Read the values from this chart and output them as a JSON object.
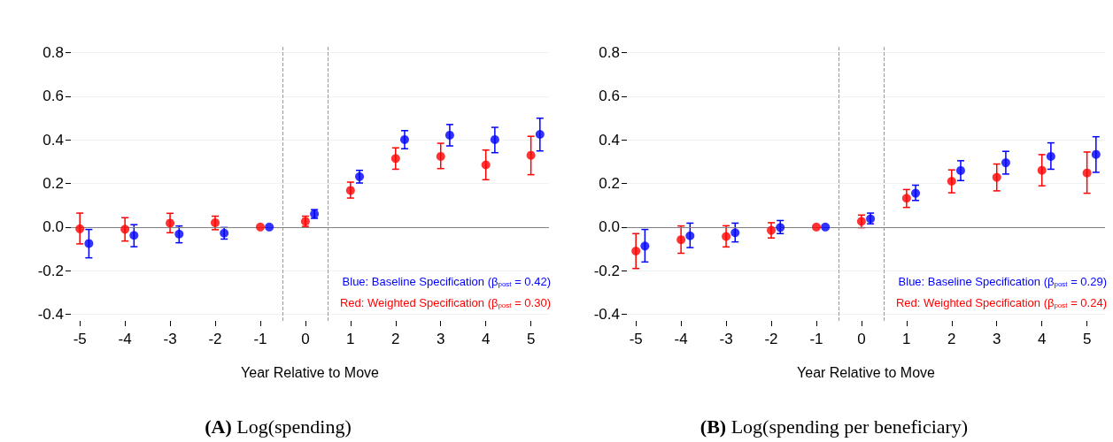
{
  "chart_data": [
    {
      "type": "scatter",
      "title": "(A) Log(spending)",
      "xlabel": "Year Relative to Move",
      "x": [
        -5,
        -4,
        -3,
        -2,
        -1,
        0,
        1,
        2,
        3,
        4,
        5
      ],
      "series": [
        {
          "color": "#0000ff",
          "x": [
            -4.8,
            -3.8,
            -2.8,
            -1.8,
            -0.8,
            0.2,
            1.2,
            2.2,
            3.2,
            4.2,
            5.2
          ],
          "values": [
            -0.075,
            -0.038,
            -0.032,
            -0.028,
            0,
            0.06,
            0.231,
            0.401,
            0.421,
            0.401,
            0.425
          ],
          "errors": [
            [
              -0.141,
              -0.011
            ],
            [
              -0.09,
              0.011
            ],
            [
              -0.072,
              0.005
            ],
            [
              -0.055,
              -0.002
            ],
            null,
            [
              0.04,
              0.08
            ],
            [
              0.202,
              0.26
            ],
            [
              0.359,
              0.442
            ],
            [
              0.372,
              0.47
            ],
            [
              0.341,
              0.457
            ],
            [
              0.349,
              0.499
            ]
          ]
        },
        {
          "color": "#ff0000",
          "values": [
            -0.008,
            -0.01,
            0.018,
            0.02,
            0,
            0.026,
            0.168,
            0.314,
            0.324,
            0.285,
            0.329
          ],
          "errors": [
            [
              -0.077,
              0.064
            ],
            [
              -0.064,
              0.043
            ],
            [
              -0.026,
              0.063
            ],
            [
              -0.012,
              0.05
            ],
            null,
            [
              0.003,
              0.05
            ],
            [
              0.133,
              0.206
            ],
            [
              0.265,
              0.363
            ],
            [
              0.268,
              0.384
            ],
            [
              0.217,
              0.353
            ],
            [
              0.24,
              0.416
            ]
          ]
        }
      ],
      "annotations": [
        "Blue: Baseline Specification (β$_{post}$ = 0.42)",
        "Red: Weighted Specification (β$_{post}$ = 0.30)"
      ],
      "xlim": [
        -5.2,
        5.4
      ],
      "xticks": [
        -5,
        -4,
        -3,
        -2,
        -1,
        0,
        1,
        2,
        3,
        4,
        5
      ],
      "ylim": [
        -0.43,
        0.83
      ],
      "yticks": [
        {
          "value": -0.4,
          "label": "-0.4"
        },
        {
          "value": -0.2,
          "label": "-0.2"
        },
        {
          "value": 0,
          "label": "0.0"
        },
        {
          "value": 0.2,
          "label": "0.2"
        },
        {
          "value": 0.4,
          "label": "0.4"
        },
        {
          "value": 0.6,
          "label": "0.6"
        },
        {
          "value": 0.8,
          "label": "0.8"
        }
      ],
      "ref_lines": [
        {
          "axis": "x",
          "value": -0.5,
          "color": "#999999",
          "line_style": "dashed"
        },
        {
          "axis": "x",
          "value": 0.5,
          "color": "#999999",
          "line_style": "dashed"
        },
        {
          "axis": "y",
          "value": 0,
          "color": "#808080",
          "line_style": "solid"
        }
      ],
      "grid": "y",
      "marker": "circle"
    },
    {
      "type": "scatter",
      "title": "(B) Log(spending per beneficiary)",
      "xlabel": "Year Relative to Move",
      "x": [
        -5,
        -4,
        -3,
        -2,
        -1,
        0,
        1,
        2,
        3,
        4,
        5
      ],
      "series": [
        {
          "color": "#0000ff",
          "x": [
            -4.8,
            -3.8,
            -2.8,
            -1.8,
            -0.8,
            0.2,
            1.2,
            2.2,
            3.2,
            4.2,
            5.2
          ],
          "values": [
            -0.087,
            -0.04,
            -0.026,
            -0.002,
            0,
            0.038,
            0.155,
            0.259,
            0.295,
            0.324,
            0.333
          ],
          "errors": [
            [
              -0.16,
              -0.011
            ],
            [
              -0.094,
              0.018
            ],
            [
              -0.068,
              0.018
            ],
            [
              -0.03,
              0.03
            ],
            null,
            [
              0.015,
              0.064
            ],
            [
              0.122,
              0.192
            ],
            [
              0.213,
              0.304
            ],
            [
              0.243,
              0.347
            ],
            [
              0.265,
              0.386
            ],
            [
              0.251,
              0.414
            ]
          ]
        },
        {
          "color": "#ff0000",
          "values": [
            -0.11,
            -0.058,
            -0.043,
            -0.015,
            0,
            0.026,
            0.132,
            0.21,
            0.228,
            0.26,
            0.248
          ],
          "errors": [
            [
              -0.19,
              -0.03
            ],
            [
              -0.12,
              0.005
            ],
            [
              -0.091,
              0.006
            ],
            [
              -0.05,
              0.02
            ],
            null,
            [
              -0.003,
              0.055
            ],
            [
              0.09,
              0.172
            ],
            [
              0.157,
              0.262
            ],
            [
              0.166,
              0.289
            ],
            [
              0.189,
              0.332
            ],
            [
              0.155,
              0.344
            ]
          ]
        }
      ],
      "annotations": [
        "Blue: Baseline Specification (β$_{post}$ = 0.29)",
        "Red: Weighted Specification (β$_{post}$ = 0.24)"
      ],
      "xlim": [
        -5.2,
        5.4
      ],
      "xticks": [
        -5,
        -4,
        -3,
        -2,
        -1,
        0,
        1,
        2,
        3,
        4,
        5
      ],
      "ylim": [
        -0.43,
        0.83
      ],
      "yticks": [
        {
          "value": -0.4,
          "label": "-0.4"
        },
        {
          "value": -0.2,
          "label": "-0.2"
        },
        {
          "value": 0,
          "label": "0.0"
        },
        {
          "value": 0.2,
          "label": "0.2"
        },
        {
          "value": 0.4,
          "label": "0.4"
        },
        {
          "value": 0.6,
          "label": "0.6"
        },
        {
          "value": 0.8,
          "label": "0.8"
        }
      ],
      "ref_lines": [
        {
          "axis": "x",
          "value": -0.5,
          "color": "#999999",
          "line_style": "dashed"
        },
        {
          "axis": "x",
          "value": 0.5,
          "color": "#999999",
          "line_style": "dashed"
        },
        {
          "axis": "y",
          "value": 0,
          "color": "#808080",
          "line_style": "solid"
        }
      ],
      "grid": "y",
      "marker": "circle"
    }
  ]
}
